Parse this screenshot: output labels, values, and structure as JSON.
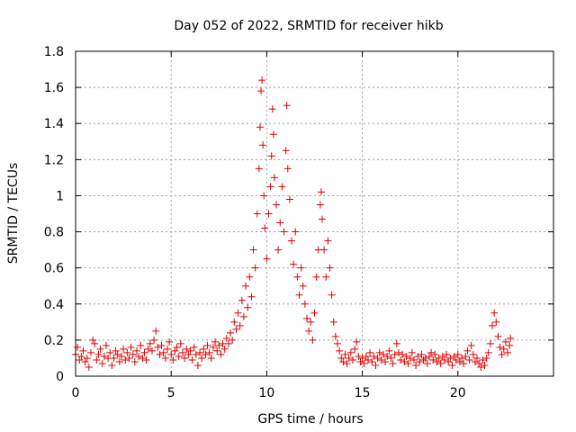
{
  "chart_data": {
    "type": "scatter",
    "title": "Day 052 of 2022, SRMTID for receiver hikb",
    "xlabel": "GPS time / hours",
    "ylabel": "SRMTID / TECUs",
    "xlim": [
      0,
      25
    ],
    "ylim": [
      0,
      1.8
    ],
    "xticks": [
      0,
      5,
      10,
      15,
      20
    ],
    "xtick_labels": [
      "0",
      "5",
      "10",
      "15",
      "20"
    ],
    "yticks": [
      0,
      0.2,
      0.4,
      0.6,
      0.8,
      1,
      1.2,
      1.4,
      1.6,
      1.8
    ],
    "ytick_labels": [
      "0",
      "0.2",
      "0.4",
      "0.6",
      "0.8",
      "1",
      "1.2",
      "1.4",
      "1.6",
      "1.8"
    ],
    "grid": true,
    "marker": "plus",
    "color": "#e00000",
    "series": [
      {
        "name": "SRMTID",
        "points": [
          [
            0.0,
            0.12
          ],
          [
            0.1,
            0.16
          ],
          [
            0.2,
            0.09
          ],
          [
            0.3,
            0.11
          ],
          [
            0.4,
            0.14
          ],
          [
            0.5,
            0.08
          ],
          [
            0.6,
            0.1
          ],
          [
            0.7,
            0.05
          ],
          [
            0.8,
            0.13
          ],
          [
            0.9,
            0.2
          ],
          [
            1.0,
            0.18
          ],
          [
            1.1,
            0.09
          ],
          [
            1.2,
            0.12
          ],
          [
            1.3,
            0.15
          ],
          [
            1.4,
            0.07
          ],
          [
            1.5,
            0.11
          ],
          [
            1.6,
            0.17
          ],
          [
            1.7,
            0.1
          ],
          [
            1.8,
            0.13
          ],
          [
            1.9,
            0.06
          ],
          [
            2.0,
            0.1
          ],
          [
            2.1,
            0.14
          ],
          [
            2.2,
            0.12
          ],
          [
            2.3,
            0.08
          ],
          [
            2.4,
            0.11
          ],
          [
            2.5,
            0.15
          ],
          [
            2.6,
            0.09
          ],
          [
            2.7,
            0.13
          ],
          [
            2.8,
            0.1
          ],
          [
            2.9,
            0.16
          ],
          [
            3.0,
            0.12
          ],
          [
            3.1,
            0.08
          ],
          [
            3.2,
            0.14
          ],
          [
            3.3,
            0.11
          ],
          [
            3.4,
            0.17
          ],
          [
            3.5,
            0.1
          ],
          [
            3.6,
            0.13
          ],
          [
            3.7,
            0.09
          ],
          [
            3.8,
            0.15
          ],
          [
            3.9,
            0.18
          ],
          [
            4.0,
            0.14
          ],
          [
            4.1,
            0.2
          ],
          [
            4.2,
            0.25
          ],
          [
            4.3,
            0.16
          ],
          [
            4.4,
            0.12
          ],
          [
            4.5,
            0.17
          ],
          [
            4.6,
            0.13
          ],
          [
            4.7,
            0.1
          ],
          [
            4.8,
            0.15
          ],
          [
            4.9,
            0.19
          ],
          [
            5.0,
            0.12
          ],
          [
            5.1,
            0.09
          ],
          [
            5.2,
            0.14
          ],
          [
            5.3,
            0.16
          ],
          [
            5.4,
            0.11
          ],
          [
            5.5,
            0.18
          ],
          [
            5.6,
            0.13
          ],
          [
            5.7,
            0.1
          ],
          [
            5.8,
            0.15
          ],
          [
            5.9,
            0.12
          ],
          [
            6.0,
            0.14
          ],
          [
            6.1,
            0.09
          ],
          [
            6.2,
            0.16
          ],
          [
            6.3,
            0.12
          ],
          [
            6.4,
            0.06
          ],
          [
            6.5,
            0.13
          ],
          [
            6.6,
            0.1
          ],
          [
            6.7,
            0.15
          ],
          [
            6.8,
            0.12
          ],
          [
            6.9,
            0.17
          ],
          [
            7.0,
            0.13
          ],
          [
            7.1,
            0.1
          ],
          [
            7.2,
            0.16
          ],
          [
            7.3,
            0.19
          ],
          [
            7.4,
            0.14
          ],
          [
            7.5,
            0.17
          ],
          [
            7.6,
            0.12
          ],
          [
            7.7,
            0.18
          ],
          [
            7.8,
            0.15
          ],
          [
            7.9,
            0.21
          ],
          [
            8.0,
            0.18
          ],
          [
            8.1,
            0.24
          ],
          [
            8.2,
            0.2
          ],
          [
            8.3,
            0.3
          ],
          [
            8.4,
            0.26
          ],
          [
            8.5,
            0.35
          ],
          [
            8.6,
            0.28
          ],
          [
            8.7,
            0.42
          ],
          [
            8.8,
            0.33
          ],
          [
            8.9,
            0.5
          ],
          [
            9.0,
            0.38
          ],
          [
            9.1,
            0.55
          ],
          [
            9.2,
            0.44
          ],
          [
            9.3,
            0.7
          ],
          [
            9.4,
            0.6
          ],
          [
            9.5,
            0.9
          ],
          [
            9.6,
            1.15
          ],
          [
            9.65,
            1.38
          ],
          [
            9.7,
            1.58
          ],
          [
            9.75,
            1.64
          ],
          [
            9.8,
            1.28
          ],
          [
            9.85,
            1.0
          ],
          [
            9.9,
            0.82
          ],
          [
            10.0,
            0.65
          ],
          [
            10.1,
            0.9
          ],
          [
            10.2,
            1.05
          ],
          [
            10.25,
            1.22
          ],
          [
            10.3,
            1.48
          ],
          [
            10.35,
            1.34
          ],
          [
            10.4,
            1.1
          ],
          [
            10.5,
            0.95
          ],
          [
            10.6,
            0.7
          ],
          [
            10.7,
            0.85
          ],
          [
            10.8,
            1.05
          ],
          [
            10.9,
            0.8
          ],
          [
            11.0,
            1.25
          ],
          [
            11.05,
            1.5
          ],
          [
            11.1,
            1.15
          ],
          [
            11.2,
            0.98
          ],
          [
            11.3,
            0.75
          ],
          [
            11.4,
            0.62
          ],
          [
            11.5,
            0.8
          ],
          [
            11.6,
            0.55
          ],
          [
            11.7,
            0.45
          ],
          [
            11.8,
            0.6
          ],
          [
            11.9,
            0.5
          ],
          [
            12.0,
            0.4
          ],
          [
            12.1,
            0.32
          ],
          [
            12.2,
            0.25
          ],
          [
            12.3,
            0.3
          ],
          [
            12.4,
            0.2
          ],
          [
            12.5,
            0.35
          ],
          [
            12.6,
            0.55
          ],
          [
            12.7,
            0.7
          ],
          [
            12.8,
            0.95
          ],
          [
            12.85,
            1.02
          ],
          [
            12.9,
            0.87
          ],
          [
            13.0,
            0.7
          ],
          [
            13.1,
            0.55
          ],
          [
            13.2,
            0.75
          ],
          [
            13.3,
            0.6
          ],
          [
            13.4,
            0.45
          ],
          [
            13.5,
            0.3
          ],
          [
            13.6,
            0.22
          ],
          [
            13.7,
            0.18
          ],
          [
            13.8,
            0.14
          ],
          [
            13.9,
            0.1
          ],
          [
            14.0,
            0.08
          ],
          [
            14.1,
            0.12
          ],
          [
            14.2,
            0.07
          ],
          [
            14.3,
            0.1
          ],
          [
            14.4,
            0.13
          ],
          [
            14.5,
            0.09
          ],
          [
            14.6,
            0.15
          ],
          [
            14.7,
            0.19
          ],
          [
            14.8,
            0.11
          ],
          [
            14.9,
            0.08
          ],
          [
            15.0,
            0.1
          ],
          [
            15.1,
            0.07
          ],
          [
            15.2,
            0.11
          ],
          [
            15.3,
            0.09
          ],
          [
            15.4,
            0.13
          ],
          [
            15.5,
            0.08
          ],
          [
            15.6,
            0.11
          ],
          [
            15.7,
            0.06
          ],
          [
            15.8,
            0.1
          ],
          [
            15.9,
            0.13
          ],
          [
            16.0,
            0.09
          ],
          [
            16.1,
            0.12
          ],
          [
            16.2,
            0.08
          ],
          [
            16.3,
            0.11
          ],
          [
            16.4,
            0.14
          ],
          [
            16.5,
            0.1
          ],
          [
            16.6,
            0.07
          ],
          [
            16.7,
            0.12
          ],
          [
            16.8,
            0.18
          ],
          [
            16.9,
            0.13
          ],
          [
            17.0,
            0.09
          ],
          [
            17.1,
            0.12
          ],
          [
            17.2,
            0.08
          ],
          [
            17.3,
            0.11
          ],
          [
            17.4,
            0.07
          ],
          [
            17.5,
            0.1
          ],
          [
            17.6,
            0.13
          ],
          [
            17.7,
            0.09
          ],
          [
            17.8,
            0.06
          ],
          [
            17.9,
            0.11
          ],
          [
            18.0,
            0.08
          ],
          [
            18.1,
            0.12
          ],
          [
            18.2,
            0.09
          ],
          [
            18.3,
            0.1
          ],
          [
            18.4,
            0.07
          ],
          [
            18.5,
            0.11
          ],
          [
            18.6,
            0.13
          ],
          [
            18.7,
            0.09
          ],
          [
            18.8,
            0.12
          ],
          [
            18.9,
            0.08
          ],
          [
            19.0,
            0.1
          ],
          [
            19.1,
            0.07
          ],
          [
            19.2,
            0.11
          ],
          [
            19.3,
            0.09
          ],
          [
            19.4,
            0.12
          ],
          [
            19.5,
            0.08
          ],
          [
            19.6,
            0.1
          ],
          [
            19.7,
            0.06
          ],
          [
            19.8,
            0.11
          ],
          [
            19.9,
            0.09
          ],
          [
            20.0,
            0.12
          ],
          [
            20.1,
            0.08
          ],
          [
            20.2,
            0.1
          ],
          [
            20.3,
            0.07
          ],
          [
            20.4,
            0.11
          ],
          [
            20.5,
            0.14
          ],
          [
            20.6,
            0.09
          ],
          [
            20.7,
            0.17
          ],
          [
            20.8,
            0.12
          ],
          [
            20.9,
            0.08
          ],
          [
            21.0,
            0.1
          ],
          [
            21.1,
            0.07
          ],
          [
            21.2,
            0.05
          ],
          [
            21.3,
            0.09
          ],
          [
            21.4,
            0.06
          ],
          [
            21.5,
            0.1
          ],
          [
            21.6,
            0.13
          ],
          [
            21.7,
            0.18
          ],
          [
            21.8,
            0.28
          ],
          [
            21.9,
            0.35
          ],
          [
            22.0,
            0.3
          ],
          [
            22.1,
            0.22
          ],
          [
            22.2,
            0.16
          ],
          [
            22.3,
            0.12
          ],
          [
            22.4,
            0.15
          ],
          [
            22.5,
            0.19
          ],
          [
            22.6,
            0.13
          ],
          [
            22.7,
            0.17
          ],
          [
            22.75,
            0.21
          ]
        ]
      }
    ]
  }
}
